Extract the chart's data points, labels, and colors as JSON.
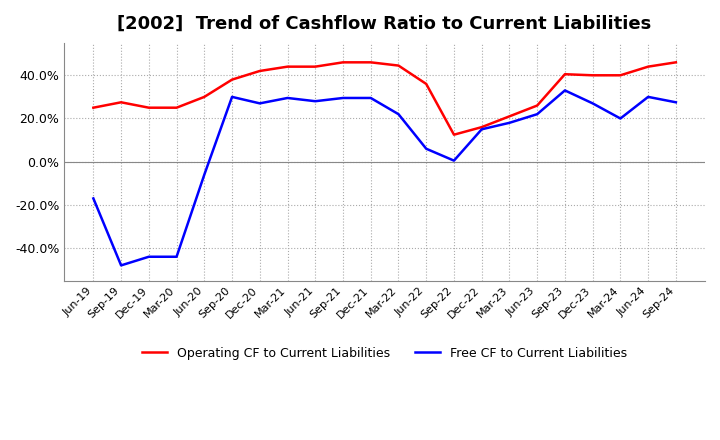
{
  "title": "[2002]  Trend of Cashflow Ratio to Current Liabilities",
  "title_fontsize": 13,
  "ylim": [
    -55,
    55
  ],
  "yticks": [
    -40.0,
    -20.0,
    0.0,
    20.0,
    40.0
  ],
  "background_color": "#ffffff",
  "grid_color": "#aaaaaa",
  "x_labels": [
    "Jun-19",
    "Sep-19",
    "Dec-19",
    "Mar-20",
    "Jun-20",
    "Sep-20",
    "Dec-20",
    "Mar-21",
    "Jun-21",
    "Sep-21",
    "Dec-21",
    "Mar-22",
    "Jun-22",
    "Sep-22",
    "Dec-22",
    "Mar-23",
    "Jun-23",
    "Sep-23",
    "Dec-23",
    "Mar-24",
    "Jun-24",
    "Sep-24"
  ],
  "operating_cf": [
    25.0,
    27.5,
    25.0,
    25.0,
    30.0,
    38.0,
    42.0,
    44.0,
    44.0,
    46.0,
    46.0,
    44.5,
    36.0,
    12.5,
    16.0,
    21.0,
    26.0,
    40.5,
    40.0,
    40.0,
    44.0,
    46.0
  ],
  "free_cf": [
    -17.0,
    -48.0,
    -44.0,
    -44.0,
    -6.0,
    30.0,
    27.0,
    29.5,
    28.0,
    29.5,
    29.5,
    22.0,
    6.0,
    0.5,
    15.0,
    18.0,
    22.0,
    33.0,
    27.0,
    20.0,
    30.0,
    27.5
  ],
  "operating_cf_color": "#ff0000",
  "free_cf_color": "#0000ff",
  "line_width": 1.8,
  "legend_operating": "Operating CF to Current Liabilities",
  "legend_free": "Free CF to Current Liabilities"
}
